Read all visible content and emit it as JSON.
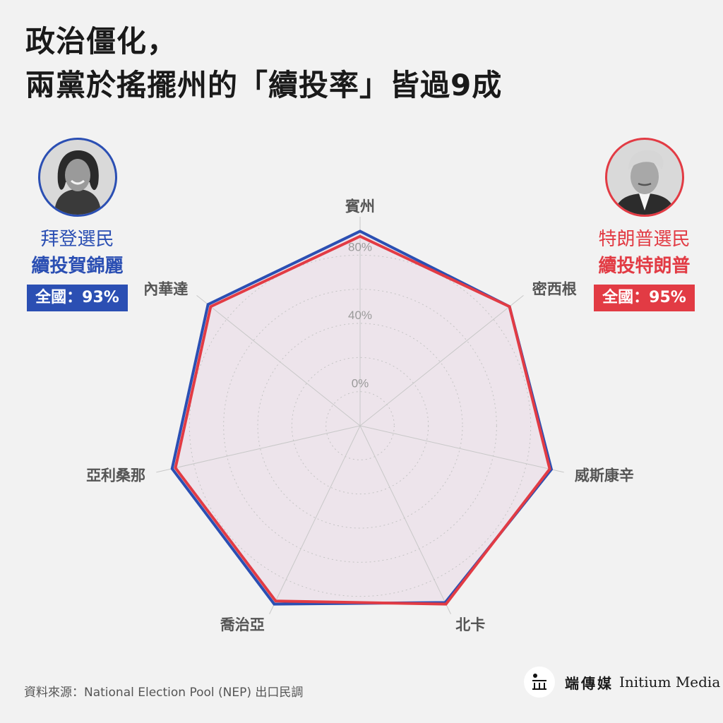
{
  "title": {
    "line1": "政治僵化，",
    "line2": "兩黨於搖擺州的「續投率」皆過9成"
  },
  "left_panel": {
    "voter_label": "拜登選民",
    "candidate_label": "續投賀錦麗",
    "national_badge": "全國：93%",
    "color": "#2b4fb3"
  },
  "right_panel": {
    "voter_label": "特朗普選民",
    "candidate_label": "續投特朗普",
    "national_badge": "全國：95%",
    "color": "#e23b44"
  },
  "chart_data": {
    "type": "radar",
    "categories": [
      "賓州",
      "密西根",
      "威斯康辛",
      "北卡",
      "喬治亞",
      "亞利桑那",
      "內華達"
    ],
    "ticks": [
      "0%",
      "40%",
      "80%"
    ],
    "range": [
      -20,
      100
    ],
    "grid": "dotted",
    "series": [
      {
        "name": "續投賀錦麗",
        "color": "#2b4fb3",
        "values": [
          94,
          92,
          95,
          95,
          96,
          93,
          94
        ]
      },
      {
        "name": "續投特朗普",
        "color": "#e23b44",
        "values": [
          91,
          92,
          94,
          96,
          94,
          91,
          92
        ]
      }
    ],
    "fill": "#ede4eb"
  },
  "source": "資料來源：National Election Pool (NEP) 出口民調",
  "logo": {
    "chinese": "端傳媒",
    "english": "Initium Media"
  }
}
